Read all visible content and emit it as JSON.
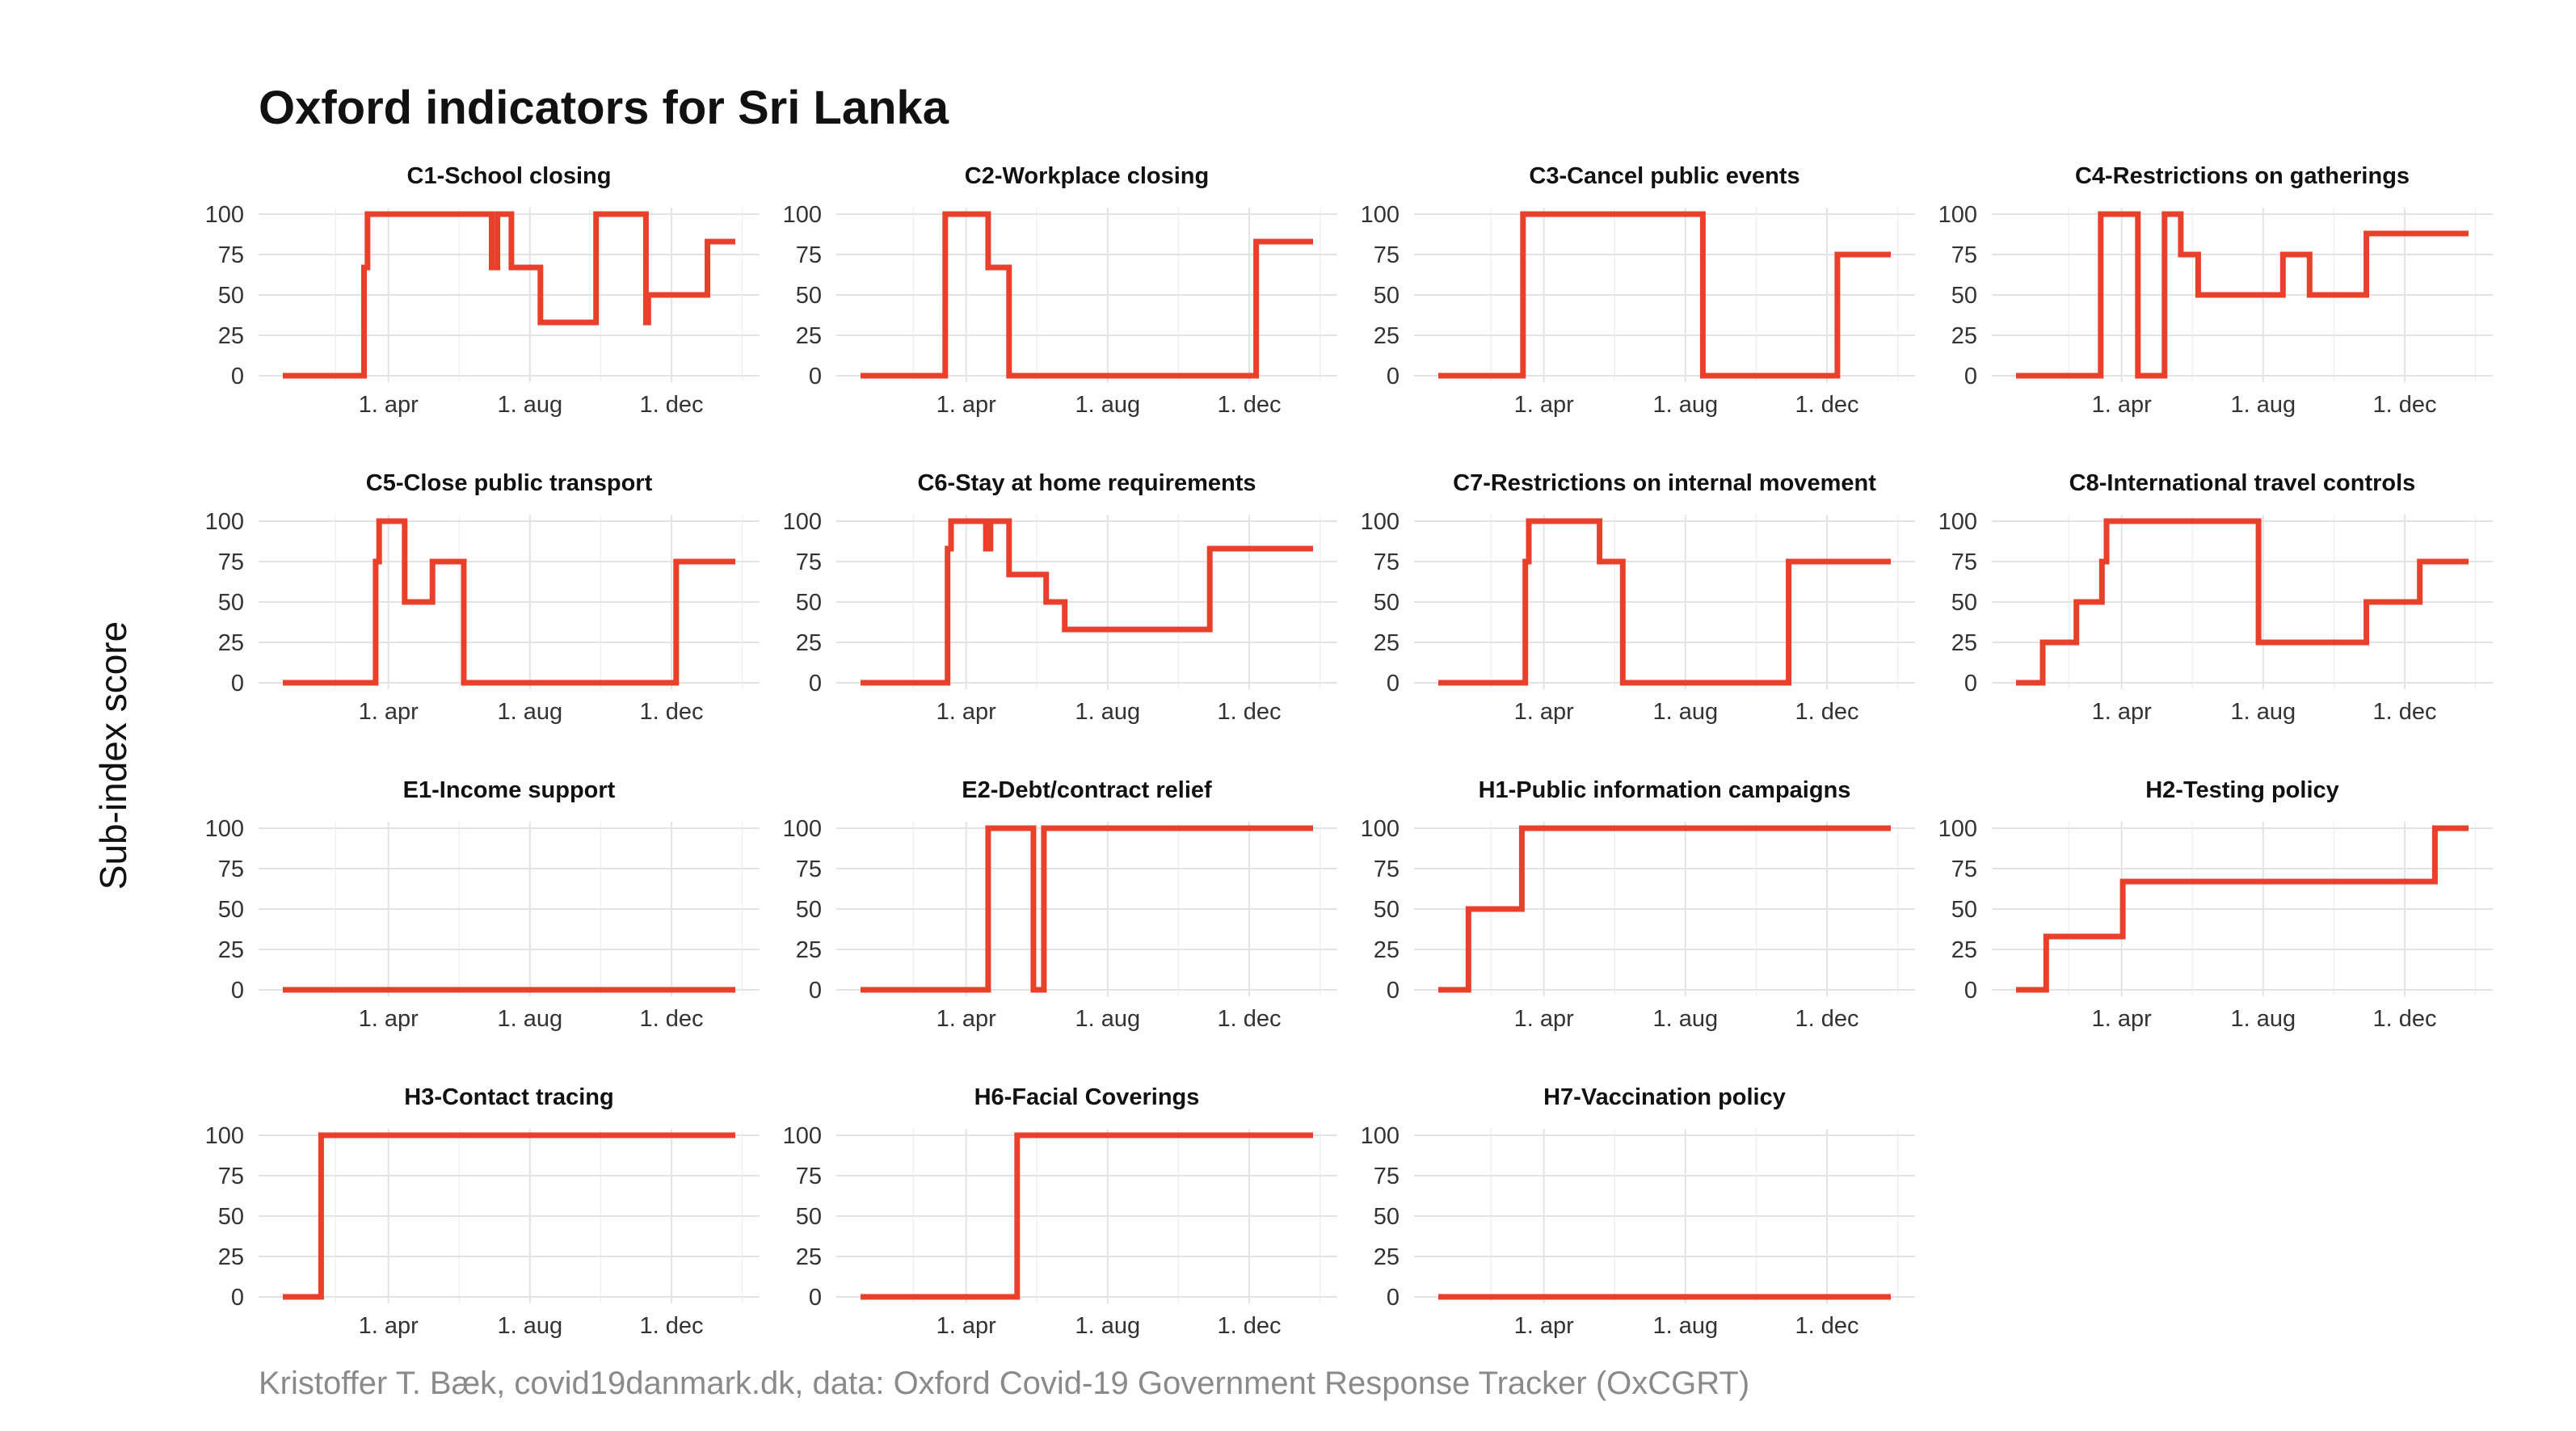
{
  "title": "Oxford indicators for Sri Lanka",
  "ylabel": "Sub-index score",
  "caption": "Kristoffer T. Bæk, covid19danmark.dk, data: Oxford Covid-19 Government Response Tracker (OxCGRT)",
  "chart_data": {
    "type": "line",
    "facets": 15,
    "layout": "4 columns x 4 rows",
    "line_color": "#e8402a",
    "ylim": [
      0,
      100
    ],
    "yticks": [
      0,
      25,
      50,
      75,
      100
    ],
    "x_unit": "days since 2020-01-01",
    "xlim": [
      0,
      390
    ],
    "xticks": [
      {
        "label": "1. apr",
        "value": 91
      },
      {
        "label": "1. aug",
        "value": 213
      },
      {
        "label": "1. dec",
        "value": 335
      }
    ],
    "panels": [
      {
        "title": "C1-School closing",
        "steps": [
          [
            0,
            0
          ],
          [
            70,
            67
          ],
          [
            73,
            100
          ],
          [
            180,
            67
          ],
          [
            185,
            100
          ],
          [
            197,
            67
          ],
          [
            222,
            33
          ],
          [
            270,
            100
          ],
          [
            313,
            33
          ],
          [
            315,
            50
          ],
          [
            366,
            83
          ],
          [
            390,
            83
          ]
        ]
      },
      {
        "title": "C2-Workplace closing",
        "steps": [
          [
            0,
            0
          ],
          [
            73,
            100
          ],
          [
            110,
            67
          ],
          [
            128,
            0
          ],
          [
            341,
            83
          ],
          [
            390,
            83
          ]
        ]
      },
      {
        "title": "C3-Cancel public events",
        "steps": [
          [
            0,
            0
          ],
          [
            73,
            100
          ],
          [
            228,
            0
          ],
          [
            344,
            75
          ],
          [
            390,
            75
          ]
        ]
      },
      {
        "title": "C4-Restrictions on gatherings",
        "steps": [
          [
            0,
            0
          ],
          [
            73,
            100
          ],
          [
            105,
            0
          ],
          [
            128,
            100
          ],
          [
            142,
            75
          ],
          [
            157,
            50
          ],
          [
            230,
            75
          ],
          [
            253,
            50
          ],
          [
            302,
            88
          ],
          [
            390,
            88
          ]
        ]
      },
      {
        "title": "C5-Close public transport",
        "steps": [
          [
            0,
            0
          ],
          [
            80,
            75
          ],
          [
            83,
            100
          ],
          [
            105,
            50
          ],
          [
            129,
            75
          ],
          [
            156,
            0
          ],
          [
            339,
            75
          ],
          [
            390,
            75
          ]
        ]
      },
      {
        "title": "C6-Stay at home requirements",
        "steps": [
          [
            0,
            0
          ],
          [
            75,
            83
          ],
          [
            78,
            100
          ],
          [
            108,
            83
          ],
          [
            112,
            100
          ],
          [
            128,
            67
          ],
          [
            160,
            50
          ],
          [
            176,
            33
          ],
          [
            301,
            83
          ],
          [
            390,
            83
          ]
        ]
      },
      {
        "title": "C7-Restrictions on internal movement",
        "steps": [
          [
            0,
            0
          ],
          [
            75,
            75
          ],
          [
            78,
            100
          ],
          [
            139,
            75
          ],
          [
            159,
            0
          ],
          [
            302,
            75
          ],
          [
            390,
            75
          ]
        ]
      },
      {
        "title": "C8-International travel controls",
        "steps": [
          [
            0,
            0
          ],
          [
            23,
            25
          ],
          [
            52,
            50
          ],
          [
            74,
            75
          ],
          [
            78,
            100
          ],
          [
            209,
            25
          ],
          [
            302,
            50
          ],
          [
            348,
            75
          ],
          [
            390,
            75
          ]
        ]
      },
      {
        "title": "E1-Income support",
        "steps": [
          [
            0,
            0
          ],
          [
            390,
            0
          ]
        ]
      },
      {
        "title": "E2-Debt/contract relief",
        "steps": [
          [
            0,
            0
          ],
          [
            110,
            100
          ],
          [
            149,
            0
          ],
          [
            158,
            100
          ],
          [
            390,
            100
          ]
        ]
      },
      {
        "title": "H1-Public information campaigns",
        "steps": [
          [
            0,
            0
          ],
          [
            26,
            50
          ],
          [
            72,
            100
          ],
          [
            390,
            100
          ]
        ]
      },
      {
        "title": "H2-Testing policy",
        "steps": [
          [
            0,
            0
          ],
          [
            26,
            33
          ],
          [
            92,
            67
          ],
          [
            361,
            100
          ],
          [
            390,
            100
          ]
        ]
      },
      {
        "title": "H3-Contact tracing",
        "steps": [
          [
            0,
            0
          ],
          [
            33,
            100
          ],
          [
            390,
            100
          ]
        ]
      },
      {
        "title": "H6-Facial Coverings",
        "steps": [
          [
            0,
            0
          ],
          [
            135,
            100
          ],
          [
            390,
            100
          ]
        ]
      },
      {
        "title": "H7-Vaccination policy",
        "steps": [
          [
            0,
            0
          ],
          [
            390,
            0
          ]
        ]
      }
    ]
  }
}
